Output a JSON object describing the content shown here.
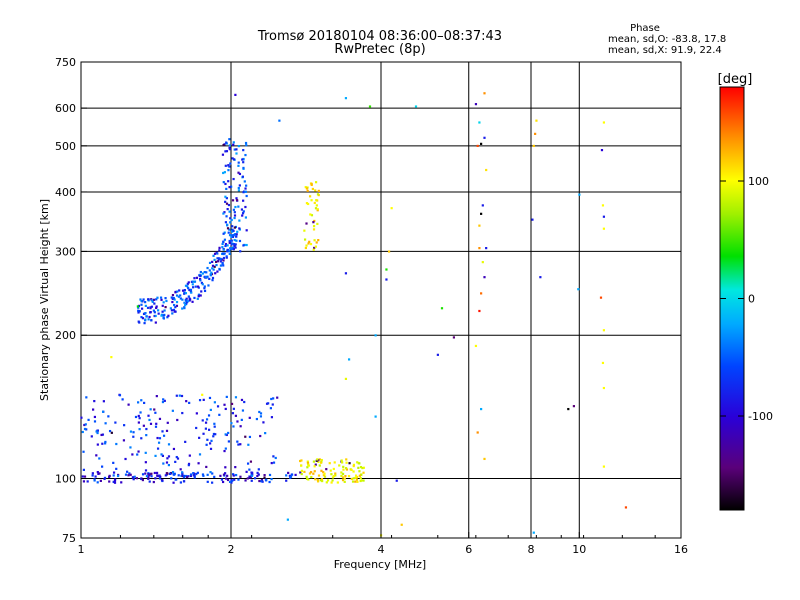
{
  "chart_data": {
    "type": "scatter",
    "title": "Tromsø 20180104 08:36:00–08:37:43",
    "subtitle": "RwPretec (8p)",
    "xlabel": "Frequency [MHz]",
    "ylabel": "Stationary phase Virtual Height [km]",
    "x_scale": "log",
    "y_scale": "log",
    "xlim": [
      1,
      16
    ],
    "ylim": [
      75,
      750
    ],
    "x_ticks": [
      1,
      2,
      4,
      6,
      8,
      10,
      16
    ],
    "x_tick_labels": [
      "1",
      "2",
      "4",
      "6",
      "8",
      "10",
      "16"
    ],
    "y_ticks": [
      75,
      100,
      200,
      300,
      400,
      500,
      600,
      750
    ],
    "y_tick_labels": [
      "75",
      "100",
      "200",
      "300",
      "400",
      "500",
      "600",
      "750"
    ],
    "grid": true,
    "stats": {
      "header": "Phase",
      "line_o": "mean, sd,O: -83.8, 17.8",
      "line_x": "mean, sd,X:  91.9, 22.4"
    },
    "colorbar": {
      "label": "[deg]",
      "range": [
        -180,
        180
      ],
      "ticks": [
        100,
        0,
        -100
      ],
      "tick_labels": [
        "100",
        "0",
        "-100"
      ],
      "colormap": "rainbow (black→purple→blue→cyan→green→yellow→orange→red)"
    },
    "groups": [
      {
        "name": "E-layer blue",
        "f0": 1.0,
        "f1": 2.7,
        "h_min": 98,
        "h_max": 103,
        "phase": -110,
        "n": 140,
        "shape": "flat"
      },
      {
        "name": "E spread blue",
        "f0": 1.0,
        "f1": 2.5,
        "h_min": 100,
        "h_max": 150,
        "phase": -100,
        "n": 230,
        "shape": "spread"
      },
      {
        "name": "E yellow",
        "f0": 2.75,
        "f1": 3.7,
        "h_min": 98,
        "h_max": 110,
        "phase": 100,
        "n": 110,
        "shape": "spread"
      },
      {
        "name": "F trace",
        "f0": 1.3,
        "f1": 2.05,
        "h_min": 225,
        "h_max": 330,
        "phase": -95,
        "n": 260,
        "shape": "curve"
      },
      {
        "name": "F cusp",
        "f0": 1.92,
        "f1": 2.15,
        "h_min": 300,
        "h_max": 520,
        "phase": -90,
        "n": 120,
        "shape": "cusp"
      },
      {
        "name": "F yellow",
        "f0": 2.8,
        "f1": 3.0,
        "h_min": 300,
        "h_max": 420,
        "phase": 105,
        "n": 45,
        "shape": "spread"
      }
    ],
    "scatter_points": [
      {
        "x": 2.04,
        "y": 640,
        "phase": -120
      },
      {
        "x": 2.5,
        "y": 565,
        "phase": -80
      },
      {
        "x": 3.4,
        "y": 630,
        "phase": -60
      },
      {
        "x": 3.8,
        "y": 605,
        "phase": 20
      },
      {
        "x": 4.7,
        "y": 605,
        "phase": -40
      },
      {
        "x": 4.2,
        "y": 370,
        "phase": 100
      },
      {
        "x": 4.15,
        "y": 300,
        "phase": 120
      },
      {
        "x": 4.1,
        "y": 275,
        "phase": 10
      },
      {
        "x": 4.1,
        "y": 262,
        "phase": -110
      },
      {
        "x": 3.4,
        "y": 270,
        "phase": -110
      },
      {
        "x": 3.9,
        "y": 200,
        "phase": -60
      },
      {
        "x": 3.45,
        "y": 178,
        "phase": -60
      },
      {
        "x": 5.3,
        "y": 228,
        "phase": 10
      },
      {
        "x": 5.2,
        "y": 182,
        "phase": -110
      },
      {
        "x": 5.6,
        "y": 198,
        "phase": -150
      },
      {
        "x": 3.9,
        "y": 135,
        "phase": -60
      },
      {
        "x": 4.3,
        "y": 99,
        "phase": -110
      },
      {
        "x": 4.4,
        "y": 80,
        "phase": 120
      },
      {
        "x": 4.0,
        "y": 76,
        "phase": 100
      },
      {
        "x": 3.4,
        "y": 162,
        "phase": 90
      },
      {
        "x": 1.75,
        "y": 150,
        "phase": 100
      },
      {
        "x": 1.15,
        "y": 180,
        "phase": 100
      },
      {
        "x": 1.45,
        "y": 220,
        "phase": -60
      },
      {
        "x": 1.3,
        "y": 230,
        "phase": 0
      },
      {
        "x": 2.6,
        "y": 82,
        "phase": -60
      },
      {
        "x": 6.2,
        "y": 612,
        "phase": -130
      },
      {
        "x": 6.45,
        "y": 645,
        "phase": 140
      },
      {
        "x": 6.3,
        "y": 560,
        "phase": -40
      },
      {
        "x": 6.25,
        "y": 500,
        "phase": 160
      },
      {
        "x": 6.35,
        "y": 505,
        "phase": -180
      },
      {
        "x": 6.45,
        "y": 520,
        "phase": -110
      },
      {
        "x": 6.5,
        "y": 445,
        "phase": 110
      },
      {
        "x": 6.4,
        "y": 375,
        "phase": -110
      },
      {
        "x": 6.35,
        "y": 360,
        "phase": -180
      },
      {
        "x": 6.3,
        "y": 340,
        "phase": 120
      },
      {
        "x": 6.3,
        "y": 305,
        "phase": 140
      },
      {
        "x": 6.5,
        "y": 305,
        "phase": -110
      },
      {
        "x": 6.4,
        "y": 285,
        "phase": 90
      },
      {
        "x": 6.45,
        "y": 265,
        "phase": -130
      },
      {
        "x": 6.35,
        "y": 245,
        "phase": 150
      },
      {
        "x": 6.3,
        "y": 225,
        "phase": 175
      },
      {
        "x": 6.2,
        "y": 190,
        "phase": 100
      },
      {
        "x": 6.35,
        "y": 140,
        "phase": -60
      },
      {
        "x": 6.25,
        "y": 125,
        "phase": 140
      },
      {
        "x": 6.45,
        "y": 110,
        "phase": 120
      },
      {
        "x": 8.2,
        "y": 565,
        "phase": 110
      },
      {
        "x": 8.15,
        "y": 530,
        "phase": 140
      },
      {
        "x": 8.1,
        "y": 500,
        "phase": 120
      },
      {
        "x": 8.05,
        "y": 350,
        "phase": -110
      },
      {
        "x": 8.35,
        "y": 265,
        "phase": -110
      },
      {
        "x": 8.1,
        "y": 77,
        "phase": -60
      },
      {
        "x": 9.5,
        "y": 140,
        "phase": -180
      },
      {
        "x": 9.75,
        "y": 142,
        "phase": -150
      },
      {
        "x": 10.0,
        "y": 395,
        "phase": -60
      },
      {
        "x": 9.95,
        "y": 250,
        "phase": -60
      },
      {
        "x": 11.2,
        "y": 560,
        "phase": 100
      },
      {
        "x": 11.1,
        "y": 490,
        "phase": -120
      },
      {
        "x": 11.15,
        "y": 375,
        "phase": 100
      },
      {
        "x": 11.2,
        "y": 355,
        "phase": -110
      },
      {
        "x": 11.2,
        "y": 335,
        "phase": 100
      },
      {
        "x": 11.05,
        "y": 240,
        "phase": 160
      },
      {
        "x": 11.2,
        "y": 205,
        "phase": 100
      },
      {
        "x": 11.15,
        "y": 175,
        "phase": 100
      },
      {
        "x": 11.2,
        "y": 155,
        "phase": 100
      },
      {
        "x": 11.2,
        "y": 106,
        "phase": 100
      },
      {
        "x": 12.4,
        "y": 87,
        "phase": 160
      }
    ]
  }
}
